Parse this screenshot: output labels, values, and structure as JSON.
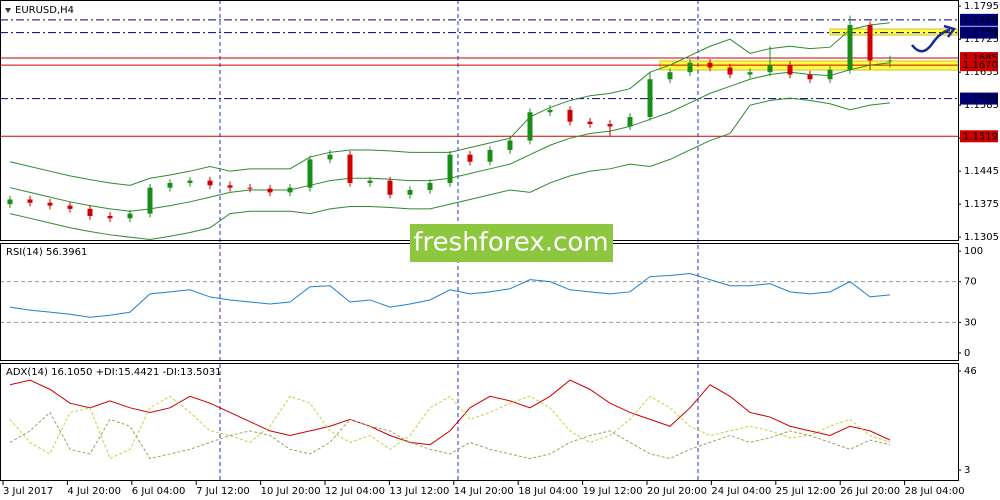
{
  "chart_data": [
    {
      "type": "candlestick",
      "title": "EURUSD,H4",
      "watermark": "freshforex.com",
      "up_color": "#1a8c1a",
      "down_color": "#d00000",
      "band_color": "#2e8b2e",
      "ylim": [
        1.1299,
        1.1806
      ],
      "yticks": [
        1.1795,
        1.1725,
        1.1655,
        1.1585,
        1.1515,
        1.1445,
        1.1375,
        1.1305
      ],
      "levels": [
        {
          "value": 1.1766,
          "color": "#00007a"
        },
        {
          "value": 1.1739,
          "color": "#00007a"
        },
        {
          "value": 1.1685,
          "color": "#d00000"
        },
        {
          "value": 1.167,
          "label": "1.1670",
          "color": "#d00000"
        },
        {
          "value": 1.1599,
          "color": "#00007a"
        },
        {
          "value": 1.1519,
          "color": "#d00000"
        }
      ],
      "ohlc": [
        [
          1.1375,
          1.1393,
          1.1367,
          1.1385
        ],
        [
          1.1385,
          1.1393,
          1.137,
          1.1378
        ],
        [
          1.1378,
          1.1386,
          1.1364,
          1.1372
        ],
        [
          1.1372,
          1.138,
          1.1357,
          1.1365
        ],
        [
          1.1365,
          1.1373,
          1.1342,
          1.135
        ],
        [
          1.135,
          1.1358,
          1.1337,
          1.1345
        ],
        [
          1.1345,
          1.1363,
          1.1337,
          1.1355
        ],
        [
          1.1355,
          1.1418,
          1.1347,
          1.141
        ],
        [
          1.141,
          1.1428,
          1.1402,
          1.142
        ],
        [
          1.142,
          1.1433,
          1.1412,
          1.1425
        ],
        [
          1.1425,
          1.1433,
          1.1407,
          1.1415
        ],
        [
          1.1415,
          1.1423,
          1.1402,
          1.141
        ],
        [
          1.141,
          1.1418,
          1.14,
          1.1408
        ],
        [
          1.1408,
          1.1416,
          1.1392,
          1.14
        ],
        [
          1.14,
          1.1418,
          1.1392,
          1.141
        ],
        [
          1.141,
          1.1478,
          1.1402,
          1.147
        ],
        [
          1.147,
          1.149,
          1.1462,
          1.148
        ],
        [
          1.148,
          1.1488,
          1.1412,
          1.142
        ],
        [
          1.142,
          1.1433,
          1.1412,
          1.1425
        ],
        [
          1.1425,
          1.1433,
          1.1387,
          1.1395
        ],
        [
          1.1395,
          1.1413,
          1.1387,
          1.1405
        ],
        [
          1.1405,
          1.1428,
          1.1397,
          1.142
        ],
        [
          1.142,
          1.1488,
          1.1412,
          1.148
        ],
        [
          1.148,
          1.1488,
          1.1457,
          1.1465
        ],
        [
          1.1465,
          1.1498,
          1.1457,
          1.149
        ],
        [
          1.149,
          1.1518,
          1.1482,
          1.151
        ],
        [
          1.151,
          1.1578,
          1.1502,
          1.157
        ],
        [
          1.157,
          1.1585,
          1.1562,
          1.1575
        ],
        [
          1.1575,
          1.1583,
          1.1542,
          1.155
        ],
        [
          1.155,
          1.1558,
          1.1537,
          1.1545
        ],
        [
          1.1545,
          1.1553,
          1.152,
          1.154
        ],
        [
          1.154,
          1.1568,
          1.1532,
          1.156
        ],
        [
          1.156,
          1.1655,
          1.1552,
          1.164
        ],
        [
          1.164,
          1.1663,
          1.1632,
          1.1655
        ],
        [
          1.1655,
          1.1683,
          1.1647,
          1.1675
        ],
        [
          1.1675,
          1.1683,
          1.1657,
          1.1665
        ],
        [
          1.1665,
          1.1673,
          1.1642,
          1.165
        ],
        [
          1.165,
          1.1663,
          1.1642,
          1.1655
        ],
        [
          1.1655,
          1.171,
          1.1647,
          1.167
        ],
        [
          1.167,
          1.1678,
          1.1642,
          1.165
        ],
        [
          1.165,
          1.1658,
          1.1632,
          1.164
        ],
        [
          1.164,
          1.1668,
          1.1632,
          1.166
        ],
        [
          1.166,
          1.1775,
          1.1652,
          1.1755
        ],
        [
          1.1755,
          1.1763,
          1.166,
          1.168
        ],
        [
          1.168,
          1.169,
          1.1665,
          1.168
        ]
      ],
      "bands": [
        {
          "values": [
            1.1465,
            1.1455,
            1.1445,
            1.1435,
            1.1427,
            1.142,
            1.1415,
            1.143,
            1.1437,
            1.1445,
            1.1455,
            1.1445,
            1.145,
            1.145,
            1.145,
            1.1475,
            1.1485,
            1.149,
            1.149,
            1.1488,
            1.1485,
            1.1485,
            1.1485,
            1.1495,
            1.1505,
            1.1515,
            1.156,
            1.158,
            1.1595,
            1.1605,
            1.161,
            1.162,
            1.1655,
            1.167,
            1.169,
            1.171,
            1.1725,
            1.1695,
            1.1705,
            1.171,
            1.1705,
            1.1708,
            1.1745,
            1.1755,
            1.176
          ]
        },
        {
          "values": [
            1.141,
            1.14,
            1.139,
            1.138,
            1.1372,
            1.1365,
            1.136,
            1.1365,
            1.1372,
            1.138,
            1.139,
            1.14,
            1.1405,
            1.1405,
            1.1405,
            1.1415,
            1.1425,
            1.143,
            1.143,
            1.1428,
            1.1425,
            1.1425,
            1.143,
            1.144,
            1.145,
            1.146,
            1.148,
            1.15,
            1.1515,
            1.1525,
            1.153,
            1.154,
            1.1555,
            1.157,
            1.159,
            1.161,
            1.1625,
            1.164,
            1.165,
            1.1655,
            1.165,
            1.1648,
            1.166,
            1.167,
            1.1675
          ]
        },
        {
          "values": [
            1.1355,
            1.1345,
            1.1335,
            1.1325,
            1.1317,
            1.131,
            1.1305,
            1.13,
            1.1307,
            1.1315,
            1.1325,
            1.1355,
            1.136,
            1.136,
            1.136,
            1.1355,
            1.1365,
            1.137,
            1.137,
            1.1368,
            1.1365,
            1.1365,
            1.1375,
            1.1385,
            1.1395,
            1.1405,
            1.14,
            1.142,
            1.1435,
            1.1445,
            1.145,
            1.146,
            1.1455,
            1.147,
            1.149,
            1.151,
            1.1525,
            1.1585,
            1.1595,
            1.16,
            1.1595,
            1.1588,
            1.1575,
            1.1585,
            1.159
          ]
        }
      ]
    },
    {
      "type": "line",
      "title": "RSI(14) 56.3961",
      "ylim": [
        -7,
        107
      ],
      "yticks": [
        100,
        70,
        30,
        0
      ],
      "grid_levels": [
        70,
        30
      ],
      "series": [
        {
          "color": "#1e7fd0",
          "values": [
            45,
            42,
            40,
            38,
            35,
            37,
            40,
            58,
            60,
            62,
            55,
            52,
            50,
            48,
            50,
            65,
            66,
            50,
            52,
            45,
            48,
            52,
            62,
            58,
            60,
            63,
            72,
            70,
            62,
            60,
            58,
            60,
            75,
            76,
            78,
            72,
            66,
            66,
            68,
            60,
            58,
            60,
            70,
            55,
            57
          ]
        }
      ]
    },
    {
      "type": "line",
      "title": "ADX(14) 16.1050 +DI:15.4421 -DI:13.5031",
      "ylim": [
        -1.3,
        49
      ],
      "yticks": [
        46,
        3
      ],
      "x_labels": [
        "3 Jul 2017",
        "4 Jul 20:00",
        "6 Jul 04:00",
        "7 Jul 12:00",
        "10 Jul 20:00",
        "12 Jul 04:00",
        "13 Jul 12:00",
        "14 Jul 20:00",
        "18 Jul 04:00",
        "19 Jul 12:00",
        "20 Jul 20:00",
        "24 Jul 04:00",
        "25 Jul 12:00",
        "26 Jul 20:00",
        "28 Jul 04:00"
      ],
      "series": [
        {
          "color": "#cc0000",
          "dashed": false,
          "values": [
            40,
            42,
            38,
            32,
            30,
            33,
            30,
            28,
            30,
            35,
            32,
            28,
            24,
            20,
            18,
            20,
            22,
            25,
            22,
            18,
            15,
            14,
            20,
            30,
            35,
            33,
            30,
            35,
            42,
            38,
            32,
            28,
            25,
            22,
            30,
            40,
            35,
            28,
            26,
            22,
            20,
            18,
            22,
            20,
            16
          ]
        },
        {
          "color": "#c8d040",
          "dashed": true,
          "values": [
            25,
            15,
            10,
            28,
            30,
            8,
            12,
            30,
            35,
            28,
            20,
            18,
            15,
            22,
            35,
            32,
            20,
            15,
            18,
            12,
            18,
            30,
            35,
            25,
            28,
            32,
            35,
            30,
            20,
            15,
            18,
            25,
            35,
            30,
            22,
            18,
            20,
            22,
            20,
            17,
            18,
            22,
            25,
            18,
            15
          ]
        },
        {
          "color": "#a0a060",
          "dashed": true,
          "values": [
            15,
            20,
            28,
            12,
            10,
            25,
            22,
            8,
            10,
            12,
            15,
            18,
            20,
            18,
            12,
            10,
            15,
            25,
            22,
            20,
            15,
            12,
            10,
            15,
            12,
            10,
            8,
            10,
            15,
            18,
            20,
            15,
            10,
            8,
            12,
            15,
            18,
            15,
            17,
            20,
            18,
            15,
            12,
            16,
            14
          ]
        }
      ]
    }
  ]
}
